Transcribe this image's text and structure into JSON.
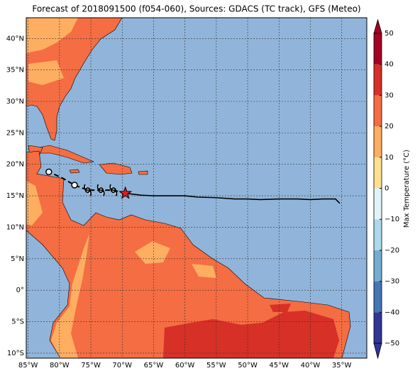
{
  "map": {
    "title": "Forecast of 2018091500 (f054-060), Sources: GDACS (TC track), GFS (Meteo)",
    "xlim": [
      -85.3,
      -31
    ],
    "ylim": [
      -10.8,
      43.3
    ],
    "xticks": [
      {
        "value": -85,
        "label": "85°W"
      },
      {
        "value": -80,
        "label": "80°W"
      },
      {
        "value": -75,
        "label": "75°W"
      },
      {
        "value": -70,
        "label": "70°W"
      },
      {
        "value": -65,
        "label": "65°W"
      },
      {
        "value": -60,
        "label": "60°W"
      },
      {
        "value": -55,
        "label": "55°W"
      },
      {
        "value": -50,
        "label": "50°W"
      },
      {
        "value": -45,
        "label": "45°W"
      },
      {
        "value": -40,
        "label": "40°W"
      },
      {
        "value": -35,
        "label": "35°W"
      }
    ],
    "yticks": [
      {
        "value": -10,
        "label": "10°S"
      },
      {
        "value": -5,
        "label": "5°S"
      },
      {
        "value": 0,
        "label": "0°"
      },
      {
        "value": 5,
        "label": "5°N"
      },
      {
        "value": 10,
        "label": "10°N"
      },
      {
        "value": 15,
        "label": "15°N"
      },
      {
        "value": 20,
        "label": "20°N"
      },
      {
        "value": 25,
        "label": "25°N"
      },
      {
        "value": 30,
        "label": "30°N"
      },
      {
        "value": 35,
        "label": "35°N"
      },
      {
        "value": 40,
        "label": "40°N"
      }
    ],
    "ocean_color": "#91b5da",
    "track": {
      "lon": [
        -35.3,
        -36,
        -38,
        -40,
        -42,
        -45,
        -48,
        -50,
        -52,
        -55,
        -58,
        -60,
        -62,
        -65,
        -67,
        -69.5
      ],
      "lat": [
        13.8,
        14.5,
        14.5,
        14.4,
        14.5,
        14.5,
        14.4,
        14.5,
        14.5,
        14.7,
        14.8,
        15.0,
        15.0,
        15.0,
        15.1,
        15.4
      ]
    },
    "forecast": {
      "lon": [
        -69.5,
        -71.4,
        -73.4,
        -75.5,
        -77.6,
        -79.5,
        -81.7
      ],
      "lat": [
        15.4,
        15.9,
        15.9,
        15.9,
        16.7,
        17.8,
        18.8
      ]
    },
    "storm_symbols": {
      "lon": [
        -75.5,
        -73.4,
        -71.4
      ],
      "lat": [
        15.9,
        15.9,
        15.9
      ]
    },
    "current": {
      "lon": -69.5,
      "lat": 15.4
    },
    "colorbar": {
      "label": "Max Temperature (°C)",
      "lim": [
        -50,
        50
      ],
      "ticks": [
        {
          "value": -50,
          "label": "−50"
        },
        {
          "value": -40,
          "label": "−40"
        },
        {
          "value": -30,
          "label": "−30"
        },
        {
          "value": -20,
          "label": "−20"
        },
        {
          "value": -10,
          "label": "−10"
        },
        0,
        10,
        20,
        30,
        40,
        50
      ],
      "colors": [
        "#313695",
        "#4575b4",
        "#74add1",
        "#abd9e9",
        "#e0f3f8",
        "#fee090",
        "#fdae61",
        "#f46d43",
        "#d73027",
        "#a50026"
      ]
    }
  }
}
